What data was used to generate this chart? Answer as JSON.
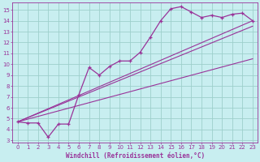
{
  "bg_color": "#c8eef0",
  "line_color": "#993399",
  "marker": "+",
  "xlabel": "Windchill (Refroidissement éolien,°C)",
  "xlim": [
    -0.5,
    23.5
  ],
  "ylim": [
    2.8,
    15.7
  ],
  "xticks": [
    0,
    1,
    2,
    3,
    4,
    5,
    6,
    7,
    8,
    9,
    10,
    11,
    12,
    13,
    14,
    15,
    16,
    17,
    18,
    19,
    20,
    21,
    22,
    23
  ],
  "yticks": [
    3,
    4,
    5,
    6,
    7,
    8,
    9,
    10,
    11,
    12,
    13,
    14,
    15
  ],
  "grid_color": "#9dcfcc",
  "line1_x": [
    0,
    1,
    2,
    3,
    4,
    5,
    6,
    7,
    8,
    9,
    10,
    11,
    12,
    13,
    14,
    15,
    16,
    17,
    18,
    19,
    20,
    21,
    22,
    23
  ],
  "line1_y": [
    4.7,
    4.6,
    4.6,
    3.3,
    4.5,
    4.5,
    7.2,
    9.7,
    9.0,
    9.8,
    10.3,
    10.3,
    11.1,
    12.5,
    14.0,
    15.1,
    15.3,
    14.8,
    14.3,
    14.5,
    14.3,
    14.6,
    14.7,
    14.0
  ],
  "line2_x": [
    0,
    23
  ],
  "line2_y": [
    4.7,
    14.0
  ],
  "line3_x": [
    0,
    23
  ],
  "line3_y": [
    4.7,
    13.5
  ],
  "line4_x": [
    0,
    23
  ],
  "line4_y": [
    4.7,
    10.5
  ]
}
